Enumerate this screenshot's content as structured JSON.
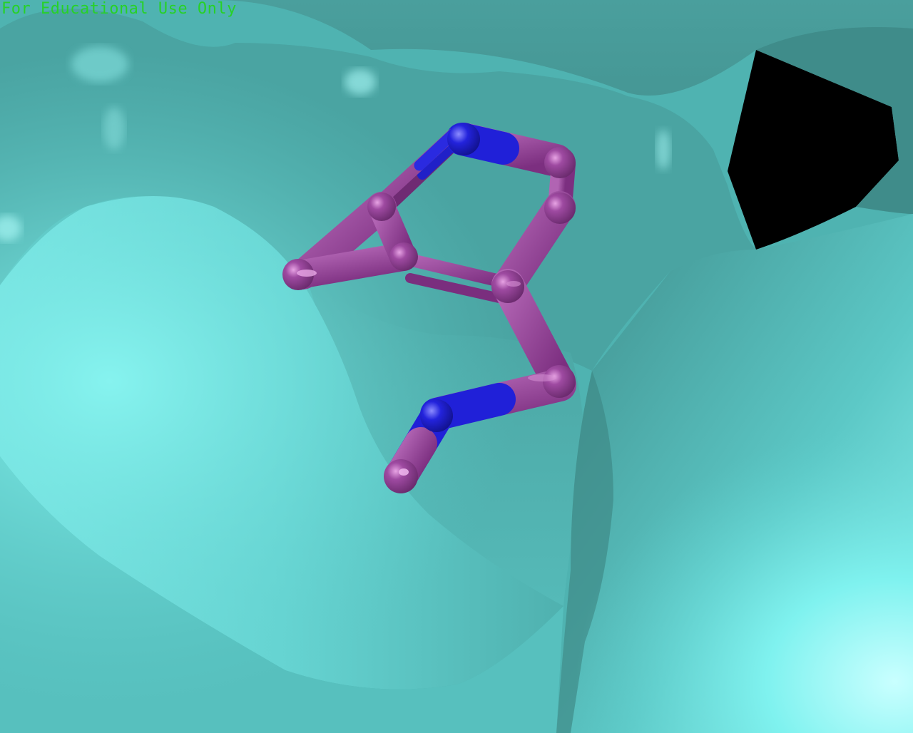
{
  "watermark": {
    "text": "For Educational Use Only",
    "color": "#27d127"
  },
  "scene": {
    "background_color": "#000000",
    "surface_color": "#5fcdcb",
    "surface_shadow_color": "#2e6d6d",
    "surface_highlight_color": "#8ef7f4",
    "ligand": {
      "carbon_color": "#8e3d91",
      "carbon_highlight_color": "#d98ad6",
      "nitrogen_color": "#1f1fd6",
      "nitrogen_highlight_color": "#7f7fff",
      "atom_names": [
        "N",
        "N",
        "C",
        "C",
        "C",
        "C",
        "C",
        "N",
        "C"
      ]
    }
  }
}
